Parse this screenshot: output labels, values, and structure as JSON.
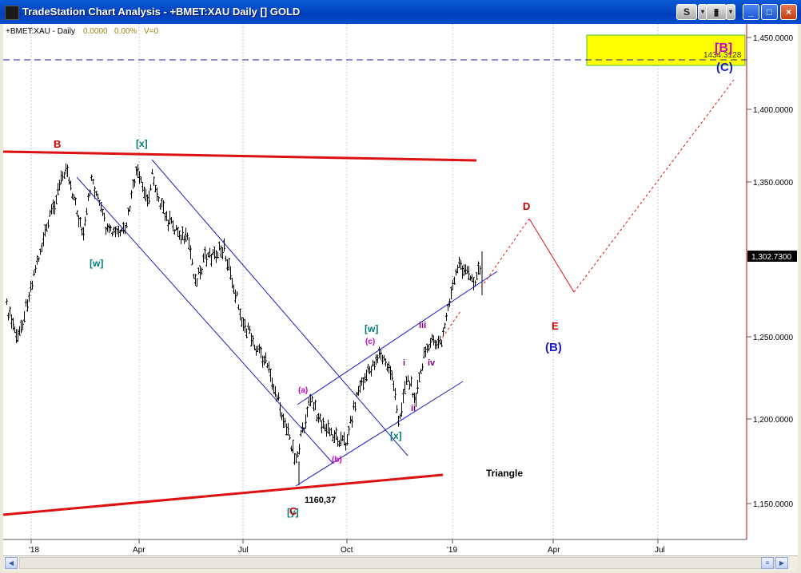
{
  "window": {
    "title": "TradeStation Chart Analysis - +BMET:XAU Daily [] GOLD",
    "btn_s": "S",
    "btn_min": "_",
    "btn_max": "□",
    "btn_close": "×"
  },
  "chart": {
    "info": {
      "symbol": "+BMET:XAU - Daily",
      "change": "0.0000",
      "change_pct": "0.00%",
      "volume": "V=0"
    },
    "last_price": "1,302.7300",
    "target_price": "1434.3128",
    "x_ticks": [
      "'18",
      "Apr",
      "Jul",
      "Oct",
      "'19",
      "Apr",
      "Jul"
    ],
    "y_ticks": [
      "1,450.0000",
      "1,400.0000",
      "1,350.0000",
      "1,300.0000",
      "1,250.0000",
      "1,200.0000",
      "1,150.0000"
    ],
    "wave_labels": {
      "B_red": "B",
      "x_top": "[x]",
      "w_left": "[w]",
      "C_red": "C",
      "y_low": "[y]",
      "low_value": "1160,37",
      "a": "(a)",
      "b": "(b)",
      "c": "(c)",
      "w_mid": "[w]",
      "x_mid": "[x]",
      "i": "i",
      "ii": "ii",
      "iii": "iii",
      "iv": "iv",
      "D": "D",
      "E": "E",
      "B_blue": "(B)",
      "C_blue": "(C)",
      "B_top": "[B]",
      "triangle": "Triangle"
    },
    "colors": {
      "bars": "#000000",
      "trendline": "#dd1111",
      "channel": "#1e1ebe",
      "target_box": "#ffff00",
      "label_red": "#cc0000",
      "label_teal": "#007a7a",
      "label_magenta": "#cc00cc",
      "label_purple": "#7a007a",
      "label_blue": "#1a1acc"
    }
  }
}
